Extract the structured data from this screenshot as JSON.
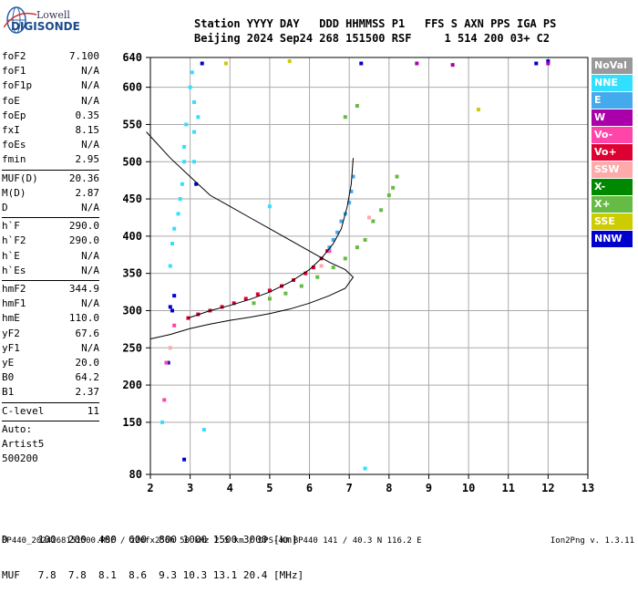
{
  "logo": {
    "line1": "Lowell",
    "line2": "DIGISONDE"
  },
  "header": {
    "line1": "Station YYYY DAY   DDD HHMMSS P1   FFS S AXN PPS IGA PS",
    "line2": "Beijing 2024 Sep24 268 151500 RSF     1 514 200 03+ C2"
  },
  "params": [
    {
      "label": "foF2",
      "value": "7.100"
    },
    {
      "label": "foF1",
      "value": "N/A"
    },
    {
      "label": "foF1p",
      "value": "N/A"
    },
    {
      "label": "foE",
      "value": "N/A"
    },
    {
      "label": "foEp",
      "value": "0.35"
    },
    {
      "label": "fxI",
      "value": "8.15"
    },
    {
      "label": "foEs",
      "value": "N/A"
    },
    {
      "label": "fmin",
      "value": "2.95"
    },
    {
      "sep": true
    },
    {
      "label": "MUF(D)",
      "value": "20.36"
    },
    {
      "label": "M(D)",
      "value": "2.87"
    },
    {
      "label": "D",
      "value": "N/A"
    },
    {
      "sep": true
    },
    {
      "label": "h`F",
      "value": "290.0"
    },
    {
      "label": "h`F2",
      "value": "290.0"
    },
    {
      "label": "h`E",
      "value": "N/A"
    },
    {
      "label": "h`Es",
      "value": "N/A"
    },
    {
      "sep": true
    },
    {
      "label": "hmF2",
      "value": "344.9"
    },
    {
      "label": "hmF1",
      "value": "N/A"
    },
    {
      "label": "hmE",
      "value": "110.0"
    },
    {
      "label": "yF2",
      "value": "67.6"
    },
    {
      "label": "yF1",
      "value": "N/A"
    },
    {
      "label": "yE",
      "value": "20.0"
    },
    {
      "label": "B0",
      "value": "64.2"
    },
    {
      "label": "B1",
      "value": "2.37"
    },
    {
      "sep": true
    },
    {
      "label": "C-level",
      "value": "11"
    },
    {
      "sep": true
    },
    {
      "label": "Auto:",
      "value": ""
    },
    {
      "label": "Artist5",
      "value": ""
    },
    {
      "label": "500200",
      "value": ""
    }
  ],
  "legend": [
    {
      "label": "NoVal",
      "color": "#999999"
    },
    {
      "label": "NNE",
      "color": "#33dfff"
    },
    {
      "label": "E",
      "color": "#44aaee"
    },
    {
      "label": "W",
      "color": "#aa00aa"
    },
    {
      "label": "Vo-",
      "color": "#ff44aa"
    },
    {
      "label": "Vo+",
      "color": "#dd0033"
    },
    {
      "label": "SSW",
      "color": "#ffaaaa"
    },
    {
      "label": "X-",
      "color": "#008800"
    },
    {
      "label": "X+",
      "color": "#66bb44"
    },
    {
      "label": "SSE",
      "color": "#cccc00"
    },
    {
      "label": "NNW",
      "color": "#0000cc"
    }
  ],
  "muf_table": {
    "line1": "D     100  200  400  600  800 1000 1500 3000 [km]",
    "line2": "MUF   7.8  7.8  8.1  8.6  9.3 10.3 13.1 20.4 [MHz]"
  },
  "footer": {
    "left": "BP440_2024268151500.RSF / 220fx256h 50 kHz 2.5 km / DPS-4D BP440 141 / 40.3 N 116.2 E",
    "right": "Ion2Png v. 1.3.11"
  },
  "chart_data": {
    "type": "scatter",
    "xlim": [
      2,
      13
    ],
    "ylim": [
      80,
      640
    ],
    "x_ticks": [
      2,
      3,
      4,
      5,
      6,
      7,
      8,
      9,
      10,
      11,
      12,
      13
    ],
    "y_ticks": [
      80,
      150,
      200,
      250,
      300,
      350,
      400,
      450,
      500,
      550,
      600,
      640
    ],
    "grid": true,
    "profile_curve": [
      [
        1.9,
        540
      ],
      [
        2.5,
        505
      ],
      [
        3.0,
        480
      ],
      [
        3.5,
        455
      ],
      [
        4.0,
        440
      ],
      [
        4.5,
        425
      ],
      [
        5.0,
        410
      ],
      [
        5.5,
        395
      ],
      [
        6.0,
        380
      ],
      [
        6.5,
        365
      ],
      [
        6.9,
        355
      ],
      [
        7.1,
        344.9
      ],
      [
        6.9,
        330
      ],
      [
        6.5,
        320
      ],
      [
        6.0,
        310
      ],
      [
        5.5,
        302
      ],
      [
        5.0,
        296
      ],
      [
        4.5,
        291
      ],
      [
        4.0,
        287
      ],
      [
        3.5,
        282
      ],
      [
        3.0,
        276
      ],
      [
        2.5,
        268
      ],
      [
        2.0,
        262
      ]
    ],
    "virtual_height_curve": [
      [
        2.95,
        290
      ],
      [
        3.5,
        300
      ],
      [
        4.0,
        307
      ],
      [
        4.5,
        315
      ],
      [
        5.0,
        325
      ],
      [
        5.5,
        338
      ],
      [
        6.0,
        355
      ],
      [
        6.3,
        370
      ],
      [
        6.6,
        390
      ],
      [
        6.8,
        410
      ],
      [
        6.95,
        440
      ],
      [
        7.05,
        470
      ],
      [
        7.1,
        505
      ]
    ],
    "series": [
      {
        "name": "Vo+",
        "points": [
          [
            2.95,
            290
          ],
          [
            3.2,
            295
          ],
          [
            3.5,
            300
          ],
          [
            3.8,
            305
          ],
          [
            4.1,
            310
          ],
          [
            4.4,
            316
          ],
          [
            4.7,
            322
          ],
          [
            5.0,
            327
          ],
          [
            5.3,
            333
          ],
          [
            5.6,
            341
          ],
          [
            5.9,
            350
          ],
          [
            6.1,
            358
          ],
          [
            6.3,
            370
          ],
          [
            6.45,
            380
          ]
        ]
      },
      {
        "name": "E",
        "points": [
          [
            6.5,
            385
          ],
          [
            6.6,
            395
          ],
          [
            6.7,
            405
          ],
          [
            6.8,
            420
          ],
          [
            6.9,
            430
          ],
          [
            7.0,
            445
          ],
          [
            7.05,
            460
          ],
          [
            7.1,
            480
          ]
        ]
      },
      {
        "name": "X+",
        "points": [
          [
            4.6,
            310
          ],
          [
            5.0,
            316
          ],
          [
            5.4,
            323
          ],
          [
            5.8,
            333
          ],
          [
            6.2,
            345
          ],
          [
            6.6,
            358
          ],
          [
            6.9,
            370
          ],
          [
            7.2,
            385
          ],
          [
            7.4,
            395
          ],
          [
            7.6,
            420
          ],
          [
            7.8,
            435
          ],
          [
            8.0,
            455
          ],
          [
            8.1,
            465
          ],
          [
            8.2,
            480
          ],
          [
            6.9,
            560
          ],
          [
            7.2,
            575
          ]
        ]
      },
      {
        "name": "NNE",
        "points": [
          [
            2.85,
            500
          ],
          [
            2.85,
            520
          ],
          [
            2.9,
            550
          ],
          [
            3.0,
            600
          ],
          [
            3.05,
            620
          ],
          [
            3.1,
            580
          ],
          [
            2.8,
            470
          ],
          [
            2.75,
            450
          ],
          [
            2.7,
            430
          ],
          [
            2.6,
            410
          ],
          [
            2.55,
            390
          ],
          [
            2.5,
            360
          ],
          [
            3.1,
            540
          ],
          [
            3.2,
            560
          ],
          [
            3.1,
            500
          ],
          [
            5.0,
            440
          ],
          [
            3.35,
            140
          ],
          [
            2.3,
            150
          ],
          [
            7.4,
            88
          ]
        ]
      },
      {
        "name": "NNW",
        "points": [
          [
            2.6,
            320
          ],
          [
            2.5,
            305
          ],
          [
            2.55,
            300
          ],
          [
            2.85,
            100
          ],
          [
            2.45,
            230
          ],
          [
            3.15,
            470
          ],
          [
            3.3,
            632
          ],
          [
            7.3,
            632
          ],
          [
            12.0,
            635
          ],
          [
            11.7,
            632
          ]
        ]
      },
      {
        "name": "Vo-",
        "points": [
          [
            2.35,
            180
          ],
          [
            2.4,
            230
          ],
          [
            6.5,
            380
          ],
          [
            2.6,
            280
          ]
        ]
      },
      {
        "name": "SSW",
        "points": [
          [
            7.5,
            425
          ],
          [
            6.3,
            360
          ],
          [
            2.5,
            250
          ]
        ]
      },
      {
        "name": "SSE",
        "points": [
          [
            3.9,
            632
          ],
          [
            10.25,
            570
          ],
          [
            5.5,
            635
          ]
        ]
      },
      {
        "name": "W",
        "points": [
          [
            8.7,
            632
          ],
          [
            9.6,
            630
          ],
          [
            12.0,
            632
          ]
        ]
      }
    ]
  }
}
